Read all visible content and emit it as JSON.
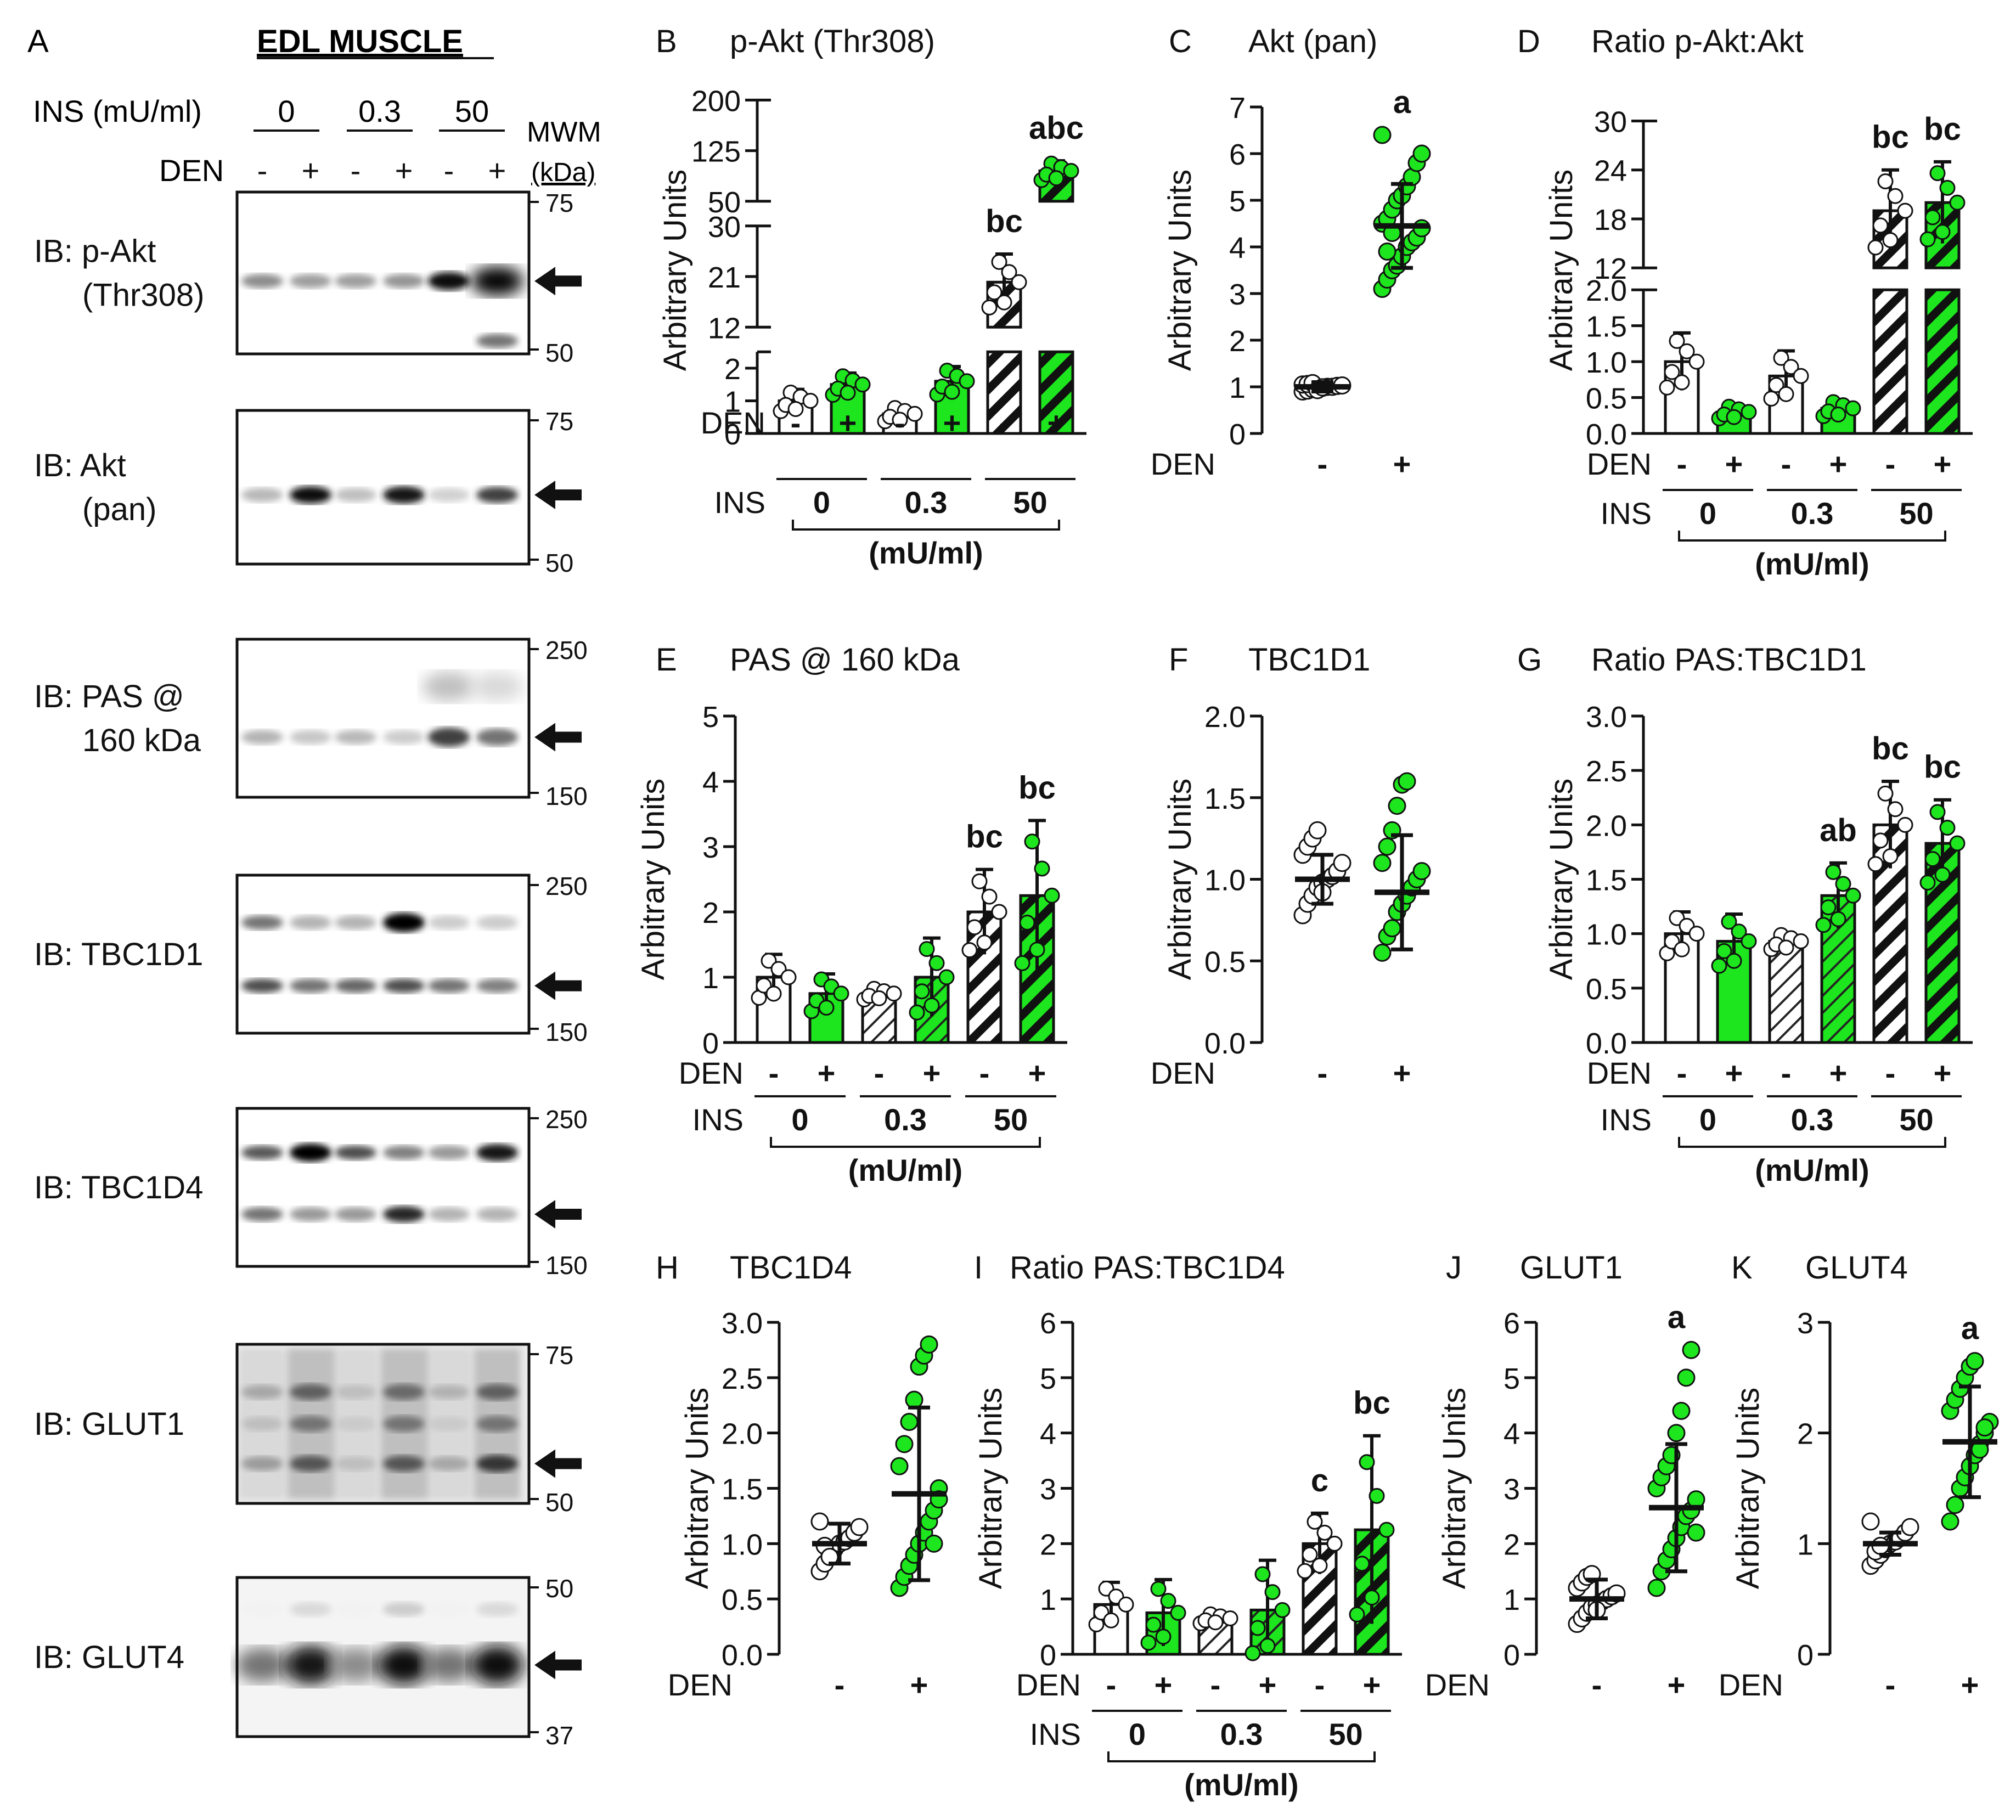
{
  "figure": {
    "panel_a": {
      "letter": "A",
      "title": "EDL MUSCLE",
      "ins_label": "INS (mU/ml)",
      "ins_levels": [
        "0",
        "0.3",
        "50"
      ],
      "den_label": "DEN",
      "den_signs": [
        "-",
        "+",
        "-",
        "+",
        "-",
        "+"
      ],
      "mwm_label": "MWM",
      "mwm_unit": "(kDa)",
      "blots": [
        {
          "label": [
            "IB: p-Akt",
            "(Thr308)"
          ],
          "markers": [
            "75",
            "50"
          ],
          "bands": [
            {
              "pos": 0.55,
              "intensities": [
                0.45,
                0.38,
                0.38,
                0.42,
                0.95,
                1.0
              ],
              "widths": [
                1,
                1,
                1,
                1,
                1.4,
                2.5
              ]
            },
            {
              "pos": 0.92,
              "intensities": [
                0,
                0,
                0,
                0,
                0,
                0.55
              ],
              "widths": [
                0,
                0,
                0,
                0,
                0,
                1
              ]
            }
          ]
        },
        {
          "label": [
            "IB: Akt",
            "(pan)"
          ],
          "markers": [
            "75",
            "50"
          ],
          "bands": [
            {
              "pos": 0.55,
              "intensities": [
                0.28,
                0.95,
                0.25,
                0.9,
                0.18,
                0.75
              ],
              "widths": [
                1,
                1.3,
                1,
                1.3,
                1,
                1.2
              ]
            }
          ]
        },
        {
          "label": [
            "IB: PAS @",
            "160 kDa"
          ],
          "markers": [
            "250",
            "150"
          ],
          "bands": [
            {
              "pos": 0.62,
              "intensities": [
                0.3,
                0.22,
                0.28,
                0.2,
                0.75,
                0.55
              ],
              "widths": [
                1,
                1,
                1,
                1,
                1.5,
                1.3
              ]
            },
            {
              "pos": 0.3,
              "intensities": [
                0,
                0,
                0,
                0,
                0.25,
                0.15
              ],
              "widths": [
                0,
                0,
                0,
                0,
                2.5,
                2.5
              ]
            }
          ]
        },
        {
          "label": [
            "IB: TBC1D1"
          ],
          "markers": [
            "250",
            "150"
          ],
          "bands": [
            {
              "pos": 0.3,
              "intensities": [
                0.55,
                0.3,
                0.3,
                0.98,
                0.2,
                0.2
              ],
              "widths": [
                1,
                1,
                1,
                1.5,
                1,
                1
              ]
            },
            {
              "pos": 0.7,
              "intensities": [
                0.7,
                0.55,
                0.6,
                0.7,
                0.55,
                0.5
              ],
              "widths": [
                1,
                1,
                1,
                1,
                1,
                1
              ]
            }
          ]
        },
        {
          "label": [
            "IB: TBC1D4"
          ],
          "markers": [
            "250",
            "150"
          ],
          "bands": [
            {
              "pos": 0.28,
              "intensities": [
                0.65,
                1.0,
                0.7,
                0.5,
                0.4,
                0.9
              ],
              "widths": [
                1,
                1.4,
                1,
                1,
                1,
                1.3
              ]
            },
            {
              "pos": 0.67,
              "intensities": [
                0.55,
                0.4,
                0.4,
                0.85,
                0.3,
                0.3
              ],
              "widths": [
                1,
                1,
                1,
                1.2,
                1,
                1
              ]
            }
          ]
        },
        {
          "label": [
            "IB: GLUT1"
          ],
          "markers": [
            "75",
            "50"
          ],
          "bands": [
            {
              "pos": 0.3,
              "intensities": [
                0.3,
                0.55,
                0.2,
                0.5,
                0.25,
                0.55
              ],
              "widths": [
                1,
                1.2,
                1,
                1.2,
                1,
                1.2
              ]
            },
            {
              "pos": 0.5,
              "intensities": [
                0.2,
                0.45,
                0.15,
                0.45,
                0.15,
                0.45
              ],
              "widths": [
                1,
                1.2,
                1,
                1.2,
                1,
                1.2
              ]
            },
            {
              "pos": 0.75,
              "intensities": [
                0.35,
                0.6,
                0.2,
                0.6,
                0.3,
                0.75
              ],
              "widths": [
                1,
                1.2,
                1,
                1.2,
                1,
                1.3
              ]
            }
          ]
        },
        {
          "label": [
            "IB: GLUT4"
          ],
          "markers": [
            "50",
            "37"
          ],
          "bands": [
            {
              "pos": 0.55,
              "intensities": [
                0.55,
                0.9,
                0.45,
                0.95,
                0.55,
                0.95
              ],
              "widths": [
                3,
                3.5,
                3,
                3.5,
                3,
                3.5
              ]
            },
            {
              "pos": 0.2,
              "intensities": [
                0.05,
                0.15,
                0.05,
                0.2,
                0.05,
                0.15
              ],
              "widths": [
                1,
                1,
                1,
                1,
                1,
                1
              ]
            }
          ]
        }
      ]
    },
    "axis_common": {
      "ylabel": "Arbitrary Units",
      "den_label": "DEN",
      "ins_label": "INS",
      "unit_label": "(mU/ml)",
      "ins_levels": [
        "0",
        "0.3",
        "50"
      ],
      "signs": [
        "-",
        "+"
      ]
    },
    "colors": {
      "white": "#ffffff",
      "green": "#1ee61e",
      "black": "#111111",
      "open": "#ffffff"
    }
  },
  "chart_data": [
    {
      "panel": "B",
      "title": "p-Akt (Thr308)",
      "type": "bar",
      "broken_axis": true,
      "segments": [
        {
          "ylim": [
            0,
            2.5
          ],
          "ticks": [
            0,
            1,
            2
          ]
        },
        {
          "ylim": [
            12,
            30
          ],
          "ticks": [
            12,
            21,
            30
          ]
        },
        {
          "ylim": [
            50,
            200
          ],
          "ticks": [
            50,
            125,
            200
          ]
        }
      ],
      "categories": [
        "DEN- INS 0",
        "DEN+ INS 0",
        "DEN- INS 0.3",
        "DEN+ INS 0.3",
        "DEN- INS 50",
        "DEN+ INS 50"
      ],
      "values": [
        1.0,
        1.5,
        0.6,
        1.6,
        20,
        95
      ],
      "errors": [
        0.35,
        0.35,
        0.25,
        0.45,
        5,
        15
      ],
      "fills": [
        "white",
        "green",
        "white",
        "green",
        "white-hatch",
        "green-hatch"
      ],
      "annotations": [
        "",
        "",
        "",
        "",
        "bc",
        "abc"
      ]
    },
    {
      "panel": "C",
      "title": "Akt (pan)",
      "type": "scatter",
      "ylim": [
        0,
        7
      ],
      "ticks": [
        0,
        1,
        2,
        3,
        4,
        5,
        6,
        7
      ],
      "groups": [
        "-",
        "+"
      ],
      "means": [
        1.0,
        4.45
      ],
      "sds": [
        0.1,
        0.9
      ],
      "annotations": [
        "",
        "a"
      ],
      "points": [
        [
          0.9,
          0.92,
          0.95,
          0.97,
          0.98,
          1.0,
          1.0,
          1.02,
          1.03,
          1.05,
          1.06,
          1.08,
          0.93,
          0.99
        ],
        [
          3.1,
          3.3,
          3.5,
          3.6,
          3.8,
          4.0,
          4.1,
          4.2,
          4.4,
          4.5,
          4.6,
          4.8,
          5.0,
          5.1,
          5.3,
          5.5,
          5.8,
          6.0,
          6.4,
          3.9,
          4.3
        ]
      ]
    },
    {
      "panel": "D",
      "title": "Ratio p-Akt:Akt",
      "type": "bar",
      "broken_axis": true,
      "segments": [
        {
          "ylim": [
            0,
            2.0
          ],
          "ticks": [
            0,
            0.5,
            1.0,
            1.5,
            2.0
          ]
        },
        {
          "ylim": [
            12,
            30
          ],
          "ticks": [
            12,
            18,
            24,
            30
          ]
        }
      ],
      "categories": [
        "DEN- INS 0",
        "DEN+ INS 0",
        "DEN- INS 0.3",
        "DEN+ INS 0.3",
        "DEN- INS 50",
        "DEN+ INS 50"
      ],
      "values": [
        1.0,
        0.3,
        0.8,
        0.35,
        19,
        20
      ],
      "errors": [
        0.4,
        0.1,
        0.35,
        0.12,
        5,
        5
      ],
      "fills": [
        "white",
        "green",
        "white",
        "green",
        "white-hatch",
        "green-hatch"
      ],
      "annotations": [
        "",
        "",
        "",
        "",
        "bc",
        "bc"
      ]
    },
    {
      "panel": "E",
      "title": "PAS @ 160 kDa",
      "type": "bar",
      "ylim": [
        0,
        5
      ],
      "ticks": [
        0,
        1,
        2,
        3,
        4,
        5
      ],
      "categories": [
        "DEN- INS 0",
        "DEN+ INS 0",
        "DEN- INS 0.3",
        "DEN+ INS 0.3",
        "DEN- INS 50",
        "DEN+ INS 50"
      ],
      "values": [
        1.0,
        0.75,
        0.75,
        1.0,
        2.0,
        2.25
      ],
      "errors": [
        0.35,
        0.3,
        0.1,
        0.6,
        0.65,
        1.15
      ],
      "fills": [
        "white",
        "green",
        "white-hatch",
        "green-hatch",
        "white-hatch",
        "green-hatch"
      ],
      "annotations": [
        "",
        "",
        "",
        "",
        "bc",
        "bc"
      ]
    },
    {
      "panel": "F",
      "title": "TBC1D1",
      "type": "scatter",
      "ylim": [
        0,
        2.0
      ],
      "ticks": [
        0.0,
        0.5,
        1.0,
        1.5,
        2.0
      ],
      "groups": [
        "-",
        "+"
      ],
      "means": [
        1.0,
        0.92
      ],
      "sds": [
        0.15,
        0.35
      ],
      "annotations": [
        "",
        ""
      ],
      "points": [
        [
          0.78,
          0.85,
          0.9,
          0.95,
          0.98,
          1.0,
          1.02,
          1.05,
          1.1,
          1.15,
          1.2,
          1.25,
          1.3,
          0.92
        ],
        [
          0.55,
          0.65,
          0.7,
          0.8,
          0.85,
          0.9,
          0.95,
          1.0,
          1.05,
          1.1,
          1.2,
          1.3,
          1.45,
          1.58,
          1.6
        ]
      ]
    },
    {
      "panel": "G",
      "title": "Ratio PAS:TBC1D1",
      "type": "bar",
      "ylim": [
        0,
        3.0
      ],
      "ticks": [
        0.0,
        0.5,
        1.0,
        1.5,
        2.0,
        2.5,
        3.0
      ],
      "categories": [
        "DEN- INS 0",
        "DEN+ INS 0",
        "DEN- INS 0.3",
        "DEN+ INS 0.3",
        "DEN- INS 50",
        "DEN+ INS 50"
      ],
      "values": [
        1.0,
        0.93,
        0.93,
        1.35,
        2.0,
        1.83
      ],
      "errors": [
        0.2,
        0.25,
        0.08,
        0.3,
        0.4,
        0.4
      ],
      "fills": [
        "white",
        "green",
        "white-hatch",
        "green-hatch",
        "white-hatch",
        "green-hatch"
      ],
      "annotations": [
        "",
        "",
        "",
        "ab",
        "bc",
        "bc"
      ]
    },
    {
      "panel": "H",
      "title": "TBC1D4",
      "type": "scatter",
      "ylim": [
        0,
        3.0
      ],
      "ticks": [
        0.0,
        0.5,
        1.0,
        1.5,
        2.0,
        2.5,
        3.0
      ],
      "groups": [
        "-",
        "+"
      ],
      "means": [
        1.0,
        1.45
      ],
      "sds": [
        0.18,
        0.78
      ],
      "annotations": [
        "",
        ""
      ],
      "points": [
        [
          0.75,
          0.82,
          0.9,
          0.95,
          1.0,
          1.02,
          1.05,
          1.1,
          1.15,
          1.2,
          0.98,
          0.88
        ],
        [
          0.6,
          0.7,
          0.8,
          0.9,
          1.0,
          1.1,
          1.2,
          1.3,
          1.5,
          1.7,
          1.9,
          2.1,
          2.3,
          2.6,
          2.7,
          2.8,
          1.0,
          1.4
        ]
      ]
    },
    {
      "panel": "I",
      "title": "Ratio PAS:TBC1D4",
      "type": "bar",
      "ylim": [
        0,
        6
      ],
      "ticks": [
        0,
        1,
        2,
        3,
        4,
        5,
        6
      ],
      "categories": [
        "DEN- INS 0",
        "DEN+ INS 0",
        "DEN- INS 0.3",
        "DEN+ INS 0.3",
        "DEN- INS 50",
        "DEN+ INS 50"
      ],
      "values": [
        0.9,
        0.75,
        0.65,
        0.8,
        2.0,
        2.25
      ],
      "errors": [
        0.4,
        0.6,
        0.1,
        0.9,
        0.55,
        1.7
      ],
      "fills": [
        "white",
        "green",
        "white-hatch",
        "green-hatch",
        "white-hatch",
        "green-hatch"
      ],
      "annotations": [
        "",
        "",
        "",
        "",
        "c",
        "bc"
      ]
    },
    {
      "panel": "J",
      "title": "GLUT1",
      "type": "scatter",
      "ylim": [
        0,
        6
      ],
      "ticks": [
        0,
        1,
        2,
        3,
        4,
        5,
        6
      ],
      "groups": [
        "-",
        "+"
      ],
      "means": [
        1.0,
        2.65
      ],
      "sds": [
        0.35,
        1.15
      ],
      "annotations": [
        "",
        "a"
      ],
      "points": [
        [
          0.55,
          0.65,
          0.75,
          0.85,
          0.9,
          0.95,
          1.0,
          1.05,
          1.1,
          1.2,
          1.3,
          1.4,
          1.45,
          0.8
        ],
        [
          1.2,
          1.5,
          1.7,
          1.9,
          2.1,
          2.3,
          2.5,
          2.6,
          2.8,
          3.0,
          3.2,
          3.4,
          3.6,
          4.0,
          4.4,
          5.0,
          5.5,
          2.2
        ]
      ]
    },
    {
      "panel": "K",
      "title": "GLUT4",
      "type": "scatter",
      "ylim": [
        0,
        3
      ],
      "ticks": [
        0,
        1,
        2,
        3
      ],
      "groups": [
        "-",
        "+"
      ],
      "means": [
        1.0,
        1.92
      ],
      "sds": [
        0.1,
        0.5
      ],
      "annotations": [
        "",
        "a"
      ],
      "points": [
        [
          0.8,
          0.85,
          0.9,
          0.95,
          1.0,
          1.02,
          1.05,
          1.1,
          1.15,
          1.2,
          0.93,
          0.98
        ],
        [
          1.2,
          1.35,
          1.5,
          1.6,
          1.7,
          1.8,
          1.9,
          2.0,
          2.1,
          2.2,
          2.3,
          2.4,
          2.5,
          2.6,
          2.65,
          1.85,
          2.05
        ]
      ]
    }
  ]
}
